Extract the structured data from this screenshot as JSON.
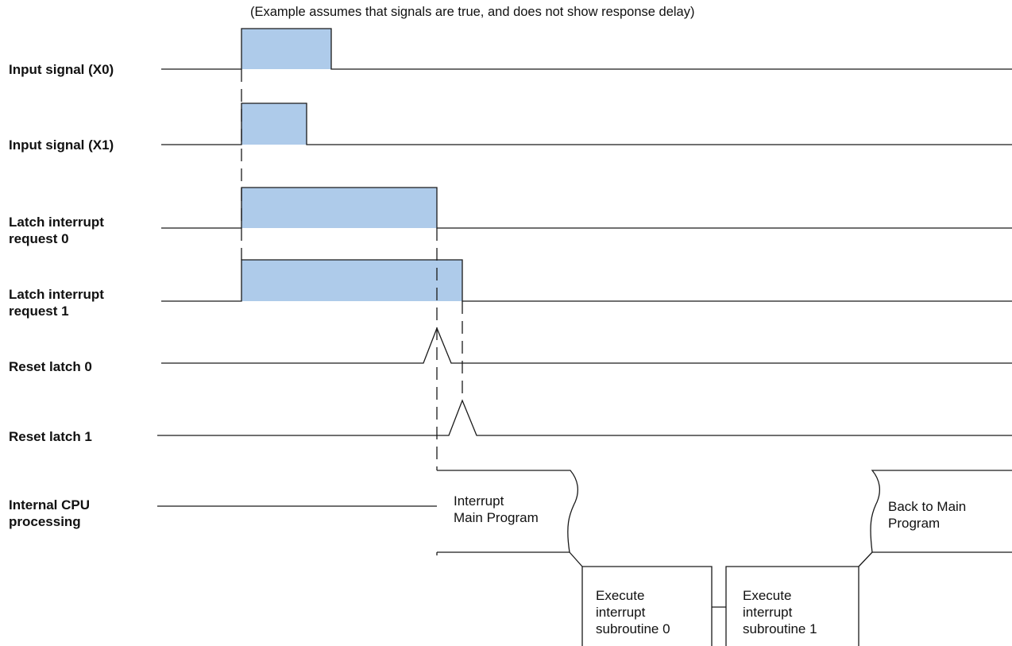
{
  "note": "(Example assumes that signals are true, and does not show response delay)",
  "signals": {
    "x0": "Input signal (X0)",
    "x1": "Input signal (X1)",
    "latch0": "Latch interrupt\nrequest 0",
    "latch1": "Latch interrupt\nrequest 1",
    "reset0": "Reset latch 0",
    "reset1": "Reset latch 1",
    "cpu": "Internal CPU\nprocessing"
  },
  "boxes": {
    "interrupt_main": "Interrupt\nMain Program",
    "execute_sub0": "Execute\ninterrupt\nsubroutine 0",
    "execute_sub1": "Execute\ninterrupt\nsubroutine 1",
    "back_to_main": "Back to Main\nProgram"
  },
  "colors": {
    "pulse_fill": "#aecbea",
    "line": "#1a1a1a"
  }
}
